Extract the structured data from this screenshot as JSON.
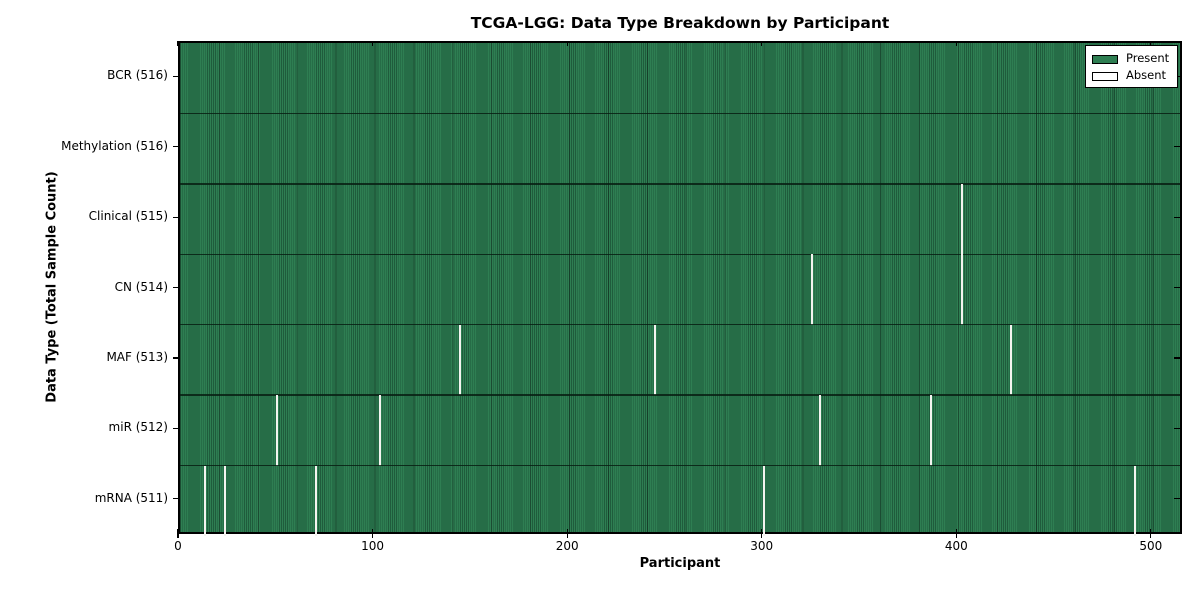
{
  "chart_data": {
    "type": "heatmap",
    "title": "TCGA-LGG: Data Type Breakdown by Participant",
    "xlabel": "Participant",
    "ylabel": "Data Type (Total Sample Count)",
    "x_ticks": [
      0,
      100,
      200,
      300,
      400,
      500
    ],
    "xlim": [
      0,
      516
    ],
    "n_participants": 516,
    "present_color": "#2e7e52",
    "absent_color": "#ffffff",
    "grid": false,
    "legend_position": "upper right",
    "legend": [
      {
        "label": "Present",
        "color": "#2e7e52"
      },
      {
        "label": "Absent",
        "color": "#ffffff"
      }
    ],
    "rows": [
      {
        "label": "BCR (516)",
        "data_type": "BCR",
        "total_samples": 516,
        "absent_participants": []
      },
      {
        "label": "Methylation (516)",
        "data_type": "Methylation",
        "total_samples": 516,
        "absent_participants": []
      },
      {
        "label": "Clinical (515)",
        "data_type": "Clinical",
        "total_samples": 515,
        "absent_participants": [
          402
        ]
      },
      {
        "label": "CN (514)",
        "data_type": "CN",
        "total_samples": 514,
        "absent_participants": [
          325,
          402
        ]
      },
      {
        "label": "MAF (513)",
        "data_type": "MAF",
        "total_samples": 513,
        "absent_participants": [
          144,
          244,
          427
        ]
      },
      {
        "label": "miR (512)",
        "data_type": "miR",
        "total_samples": 512,
        "absent_participants": [
          50,
          103,
          329,
          386
        ]
      },
      {
        "label": "mRNA (511)",
        "data_type": "mRNA",
        "total_samples": 511,
        "absent_participants": [
          13,
          23,
          70,
          300,
          491
        ]
      }
    ]
  }
}
